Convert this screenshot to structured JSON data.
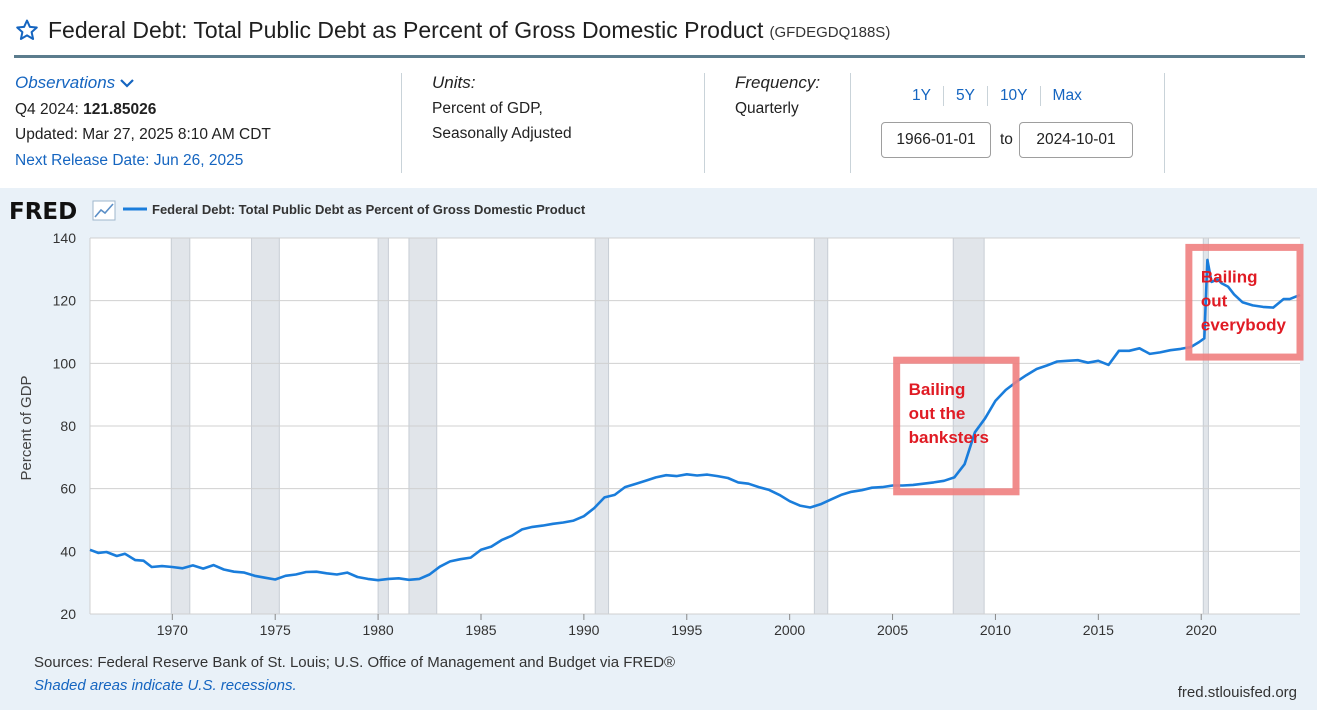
{
  "header": {
    "title": "Federal Debt: Total Public Debt as Percent of Gross Domestic Product",
    "series_id": "(GFDEGDQ188S)"
  },
  "observations": {
    "label": "Observations",
    "period": "Q4 2024:",
    "value": "121.85026",
    "updated": "Updated: Mar 27, 2025 8:10 AM CDT",
    "next_release": "Next Release Date: Jun 26, 2025"
  },
  "units": {
    "label": "Units:",
    "line1": "Percent of GDP,",
    "line2": "Seasonally Adjusted"
  },
  "frequency": {
    "label": "Frequency:",
    "value": "Quarterly"
  },
  "range": {
    "buttons": [
      "1Y",
      "5Y",
      "10Y",
      "Max"
    ],
    "start": "1966-01-01",
    "end": "2024-10-01",
    "to_label": "to"
  },
  "footer": {
    "sources": "Sources: Federal Reserve Bank of St. Louis; U.S. Office of Management and Budget via FRED®",
    "shaded_note": "Shaded areas indicate U.S. recessions.",
    "url": "fred.stlouisfed.org"
  },
  "colors": {
    "line": "#1a7ddb",
    "annotation": "#f08080",
    "annotation_text": "#e01b24",
    "link": "#1565c0"
  },
  "chart_data": {
    "type": "line",
    "brand": "FRED",
    "legend": "Federal Debt: Total Public Debt as Percent of Gross Domestic Product",
    "ylabel": "Percent of GDP",
    "xlabel": "",
    "xlim": [
      1966.0,
      2024.8
    ],
    "ylim": [
      20,
      140
    ],
    "yticks": [
      20,
      40,
      60,
      80,
      100,
      120,
      140
    ],
    "xticks": [
      1970,
      1975,
      1980,
      1985,
      1990,
      1995,
      2000,
      2005,
      2010,
      2015,
      2020
    ],
    "grid": true,
    "legend_position": "top-left",
    "recessions": [
      [
        1969.95,
        1970.85
      ],
      [
        1973.85,
        1975.2
      ],
      [
        1980.0,
        1980.5
      ],
      [
        1981.5,
        1982.85
      ],
      [
        1990.55,
        1991.2
      ],
      [
        2001.2,
        2001.85
      ],
      [
        2007.95,
        2009.45
      ],
      [
        2020.1,
        2020.35
      ]
    ],
    "series": [
      {
        "name": "Federal Debt: Total Public Debt as Percent of Gross Domestic Product",
        "x": [
          1966.0,
          1966.4,
          1966.8,
          1967.3,
          1967.7,
          1968.2,
          1968.6,
          1969.0,
          1969.5,
          1970.0,
          1970.5,
          1971.0,
          1971.5,
          1972.0,
          1972.5,
          1973.0,
          1973.5,
          1974.0,
          1974.5,
          1975.0,
          1975.5,
          1976.0,
          1976.5,
          1977.0,
          1977.5,
          1978.0,
          1978.5,
          1979.0,
          1979.5,
          1980.0,
          1980.5,
          1981.0,
          1981.5,
          1982.0,
          1982.5,
          1983.0,
          1983.5,
          1984.0,
          1984.5,
          1985.0,
          1985.5,
          1986.0,
          1986.5,
          1987.0,
          1987.5,
          1988.0,
          1988.5,
          1989.0,
          1989.5,
          1990.0,
          1990.5,
          1991.0,
          1991.5,
          1992.0,
          1992.5,
          1993.0,
          1993.5,
          1994.0,
          1994.5,
          1995.0,
          1995.5,
          1996.0,
          1996.5,
          1997.0,
          1997.5,
          1998.0,
          1998.5,
          1999.0,
          1999.5,
          2000.0,
          2000.5,
          2001.0,
          2001.5,
          2002.0,
          2002.5,
          2003.0,
          2003.5,
          2004.0,
          2004.5,
          2005.0,
          2005.5,
          2006.0,
          2006.5,
          2007.0,
          2007.5,
          2008.0,
          2008.5,
          2009.0,
          2009.5,
          2010.0,
          2010.5,
          2011.0,
          2011.5,
          2012.0,
          2012.5,
          2013.0,
          2013.5,
          2014.0,
          2014.5,
          2015.0,
          2015.5,
          2016.0,
          2016.5,
          2017.0,
          2017.5,
          2018.0,
          2018.5,
          2019.0,
          2019.5,
          2019.9,
          2020.15,
          2020.3,
          2020.5,
          2020.8,
          2021.0,
          2021.3,
          2021.6,
          2022.0,
          2022.5,
          2023.0,
          2023.5,
          2024.0,
          2024.3,
          2024.8
        ],
        "values": [
          40.5,
          39.5,
          39.8,
          38.5,
          39.2,
          37.2,
          37.0,
          35.0,
          35.3,
          35.0,
          34.6,
          35.5,
          34.5,
          35.6,
          34.2,
          33.5,
          33.2,
          32.2,
          31.6,
          31.0,
          32.2,
          32.6,
          33.4,
          33.5,
          33.0,
          32.6,
          33.2,
          31.8,
          31.2,
          30.8,
          31.2,
          31.4,
          30.9,
          31.2,
          32.6,
          35.1,
          36.8,
          37.5,
          38.0,
          40.5,
          41.5,
          43.6,
          45.0,
          47.0,
          47.8,
          48.2,
          48.8,
          49.2,
          49.8,
          51.2,
          53.8,
          57.2,
          58.0,
          60.5,
          61.5,
          62.5,
          63.6,
          64.3,
          64.0,
          64.6,
          64.2,
          64.5,
          64.0,
          63.4,
          62.0,
          61.6,
          60.5,
          59.6,
          58.0,
          56.0,
          54.6,
          54.0,
          55.0,
          56.5,
          58.0,
          59.0,
          59.5,
          60.3,
          60.5,
          61.0,
          61.0,
          61.2,
          61.6,
          62.0,
          62.5,
          63.6,
          67.8,
          78.0,
          82.5,
          88.0,
          91.5,
          94.0,
          96.2,
          98.2,
          99.3,
          100.6,
          100.8,
          101.0,
          100.2,
          100.8,
          99.5,
          104.0,
          104.0,
          104.8,
          103.0,
          103.5,
          104.2,
          104.6,
          105.2,
          106.8,
          108.0,
          133.0,
          126.0,
          126.8,
          125.5,
          124.5,
          122.0,
          119.5,
          118.5,
          118.0,
          117.8,
          120.5,
          120.5,
          121.85
        ]
      }
    ],
    "annotations": [
      {
        "text_lines": [
          "Bailing",
          "out the",
          "banksters"
        ],
        "x0": 2005.2,
        "x1": 2011.0,
        "y0": 59,
        "y1": 101
      },
      {
        "text_lines": [
          "Bailing",
          "out",
          "everybody"
        ],
        "x0": 2019.4,
        "x1": 2024.8,
        "y0": 102,
        "y1": 137
      }
    ]
  }
}
